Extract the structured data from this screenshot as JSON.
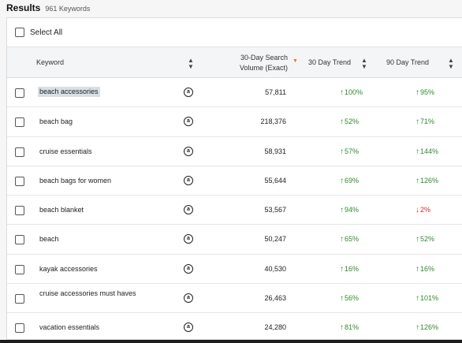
{
  "results": {
    "title": "Results",
    "count": "961 Keywords"
  },
  "select_all_label": "Select All",
  "columns": {
    "keyword": "Keyword",
    "volume_line1": "30-Day Search",
    "volume_line2": "Volume (Exact)",
    "trend30": "30 Day Trend",
    "trend90": "90 Day Trend"
  },
  "icons": {
    "sort": "sort-updown-icon",
    "sort_active": "sort-desc-icon",
    "marketplace": "amazon-logo-icon",
    "trend_up": "arrow-up-icon",
    "trend_down": "arrow-down-icon"
  },
  "colors": {
    "up": "#2f8a2f",
    "down": "#d42b2b",
    "sort_active": "#e8732a"
  },
  "rows": [
    {
      "keyword": "beach accessories",
      "volume": "57,811",
      "trend30": "100%",
      "trend30_dir": "up",
      "trend90": "95%",
      "trend90_dir": "up",
      "highlighted": true
    },
    {
      "keyword": "beach bag",
      "volume": "218,376",
      "trend30": "52%",
      "trend30_dir": "up",
      "trend90": "71%",
      "trend90_dir": "up"
    },
    {
      "keyword": "cruise essentials",
      "volume": "58,931",
      "trend30": "57%",
      "trend30_dir": "up",
      "trend90": "144%",
      "trend90_dir": "up"
    },
    {
      "keyword": "beach bags for women",
      "volume": "55,644",
      "trend30": "69%",
      "trend30_dir": "up",
      "trend90": "126%",
      "trend90_dir": "up"
    },
    {
      "keyword": "beach blanket",
      "volume": "53,567",
      "trend30": "94%",
      "trend30_dir": "up",
      "trend90": "2%",
      "trend90_dir": "down"
    },
    {
      "keyword": "beach",
      "volume": "50,247",
      "trend30": "65%",
      "trend30_dir": "up",
      "trend90": "52%",
      "trend90_dir": "up"
    },
    {
      "keyword": "kayak accessories",
      "volume": "40,530",
      "trend30": "16%",
      "trend30_dir": "up",
      "trend90": "16%",
      "trend90_dir": "up"
    },
    {
      "keyword": "cruise accessories must haves",
      "volume": "26,463",
      "trend30": "56%",
      "trend30_dir": "up",
      "trend90": "101%",
      "trend90_dir": "up"
    },
    {
      "keyword": "vacation essentials",
      "volume": "24,280",
      "trend30": "81%",
      "trend30_dir": "up",
      "trend90": "126%",
      "trend90_dir": "up"
    }
  ]
}
